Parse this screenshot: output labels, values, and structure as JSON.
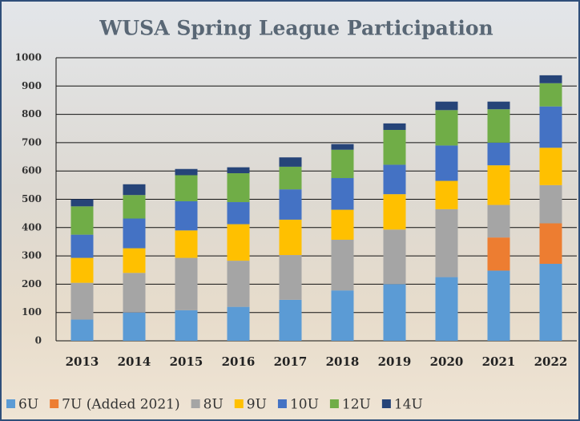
{
  "chart_data": {
    "type": "stacked-bar",
    "title": "WUSA Spring League Participation",
    "categories": [
      "2013",
      "2014",
      "2015",
      "2016",
      "2017",
      "2018",
      "2019",
      "2020",
      "2021",
      "2022"
    ],
    "series": [
      {
        "name": "6U",
        "color": "#5b9bd5",
        "values": [
          75,
          100,
          108,
          120,
          145,
          178,
          200,
          225,
          248,
          272
        ]
      },
      {
        "name": "7U (Added 2021)",
        "color": "#ed7d31",
        "values": [
          null,
          null,
          null,
          null,
          null,
          null,
          null,
          null,
          117,
          143
        ]
      },
      {
        "name": "8U",
        "color": "#a5a5a5",
        "values": [
          130,
          140,
          185,
          163,
          158,
          179,
          193,
          240,
          115,
          135
        ]
      },
      {
        "name": "9U",
        "color": "#ffc000",
        "values": [
          88,
          87,
          97,
          129,
          125,
          106,
          125,
          100,
          140,
          132
        ]
      },
      {
        "name": "10U",
        "color": "#4472c4",
        "values": [
          82,
          105,
          103,
          78,
          107,
          112,
          104,
          125,
          80,
          146
        ]
      },
      {
        "name": "12U",
        "color": "#70ad47",
        "values": [
          100,
          83,
          92,
          102,
          80,
          100,
          123,
          125,
          118,
          82
        ]
      },
      {
        "name": "14U",
        "color": "#264478",
        "values": [
          25,
          38,
          22,
          21,
          33,
          20,
          23,
          30,
          27,
          28
        ]
      }
    ],
    "ylim": [
      0,
      1000
    ],
    "yticks": [
      0,
      100,
      200,
      300,
      400,
      500,
      600,
      700,
      800,
      900,
      1000
    ],
    "grid": true,
    "legend": "bottom"
  }
}
